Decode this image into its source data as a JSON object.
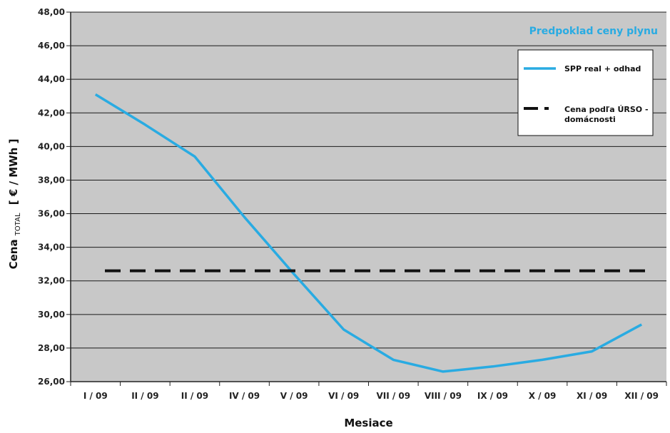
{
  "chart_data": {
    "type": "line",
    "title": "Predpoklad ceny plynu",
    "xlabel": "Mesiace",
    "ylabel_main": "Cena",
    "ylabel_sub": "TOTAL",
    "ylabel_unit": "[ € / MWh ]",
    "categories": [
      "I / 09",
      "II / 09",
      "II / 09",
      "IV / 09",
      "V / 09",
      "VI / 09",
      "VII / 09",
      "VIII / 09",
      "IX / 09",
      "X / 09",
      "XI / 09",
      "XII / 09"
    ],
    "ylim": [
      26,
      48
    ],
    "yticks": [
      "26,00",
      "28,00",
      "30,00",
      "32,00",
      "34,00",
      "36,00",
      "38,00",
      "40,00",
      "42,00",
      "44,00",
      "46,00",
      "48,00"
    ],
    "grid": true,
    "legend_position": "top-right",
    "series": [
      {
        "name": "SPP real + odhad",
        "style": "solid",
        "color": "#29ABE2",
        "values": [
          43.1,
          41.3,
          39.4,
          35.8,
          32.4,
          29.1,
          27.3,
          26.6,
          26.9,
          27.3,
          27.8,
          29.4
        ]
      },
      {
        "name": "Cena podľa ÚRSO - domácnosti",
        "name_lines": [
          "Cena podľa ÚRSO -",
          "domácnosti"
        ],
        "style": "dashed",
        "color": "#111111",
        "values": [
          32.6,
          32.6,
          32.6,
          32.6,
          32.6,
          32.6,
          32.6,
          32.6,
          32.6,
          32.6,
          32.6,
          32.6
        ]
      }
    ],
    "colors": {
      "plot_background": "#c8c8c8",
      "gridline": "#1a1a1a",
      "title": "#29ABE2"
    }
  }
}
